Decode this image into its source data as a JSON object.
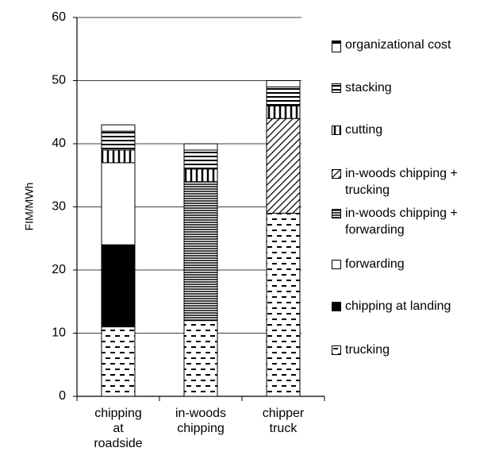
{
  "chart_data": {
    "type": "stacked_bar",
    "ylabel": "FIM/MWh",
    "categories": [
      "chipping at roadside",
      "in-woods chipping",
      "chipper truck"
    ],
    "ylim": [
      0,
      60
    ],
    "yticks": [
      0,
      10,
      20,
      30,
      40,
      50,
      60
    ],
    "grid": true,
    "series": [
      {
        "name": "trucking",
        "pattern": "dashes",
        "color": "#000000",
        "values": [
          11,
          12,
          29
        ]
      },
      {
        "name": "chipping at landing",
        "pattern": "solid",
        "color": "#000000",
        "values": [
          13,
          0,
          0
        ]
      },
      {
        "name": "forwarding",
        "pattern": "blank",
        "color": "#000000",
        "values": [
          13,
          0,
          0
        ]
      },
      {
        "name": "in-woods chipping + forwarding",
        "pattern": "hlines",
        "color": "#000000",
        "values": [
          0,
          22,
          0
        ]
      },
      {
        "name": "in-woods chipping + trucking",
        "pattern": "diagonal",
        "color": "#000000",
        "values": [
          0,
          0,
          15
        ]
      },
      {
        "name": "cutting",
        "pattern": "vlines",
        "color": "#000000",
        "values": [
          2,
          2,
          2
        ]
      },
      {
        "name": "stacking",
        "pattern": "wide-hlines",
        "color": "#000000",
        "values": [
          3,
          3,
          3
        ]
      },
      {
        "name": "organizational cost",
        "pattern": "blank",
        "color": "#000000",
        "values": [
          1,
          1,
          1
        ]
      }
    ]
  }
}
